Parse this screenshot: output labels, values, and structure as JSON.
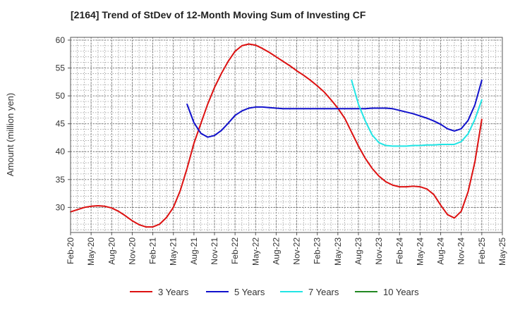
{
  "chart_data": {
    "type": "line",
    "title": "[2164]  Trend of StDev of 12-Month Moving Sum of Investing CF",
    "ylabel": "Amount (million yen)",
    "xlabel": "",
    "ylim": [
      25.5,
      60.5
    ],
    "yticks": [
      30,
      35,
      40,
      45,
      50,
      55,
      60
    ],
    "x_ticks": [
      "Feb-20",
      "May-20",
      "Aug-20",
      "Nov-20",
      "Feb-21",
      "May-21",
      "Aug-21",
      "Nov-21",
      "Feb-22",
      "May-22",
      "Aug-22",
      "Nov-22",
      "Feb-23",
      "May-23",
      "Aug-23",
      "Nov-23",
      "Feb-24",
      "May-24",
      "Aug-24",
      "Nov-24",
      "Feb-25",
      "May-25"
    ],
    "grid": true,
    "legend_position": "bottom",
    "series": [
      {
        "name": "3 Years",
        "color": "#dd1111",
        "points": [
          [
            "Feb-20",
            29.2
          ],
          [
            "Mar-20",
            29.6
          ],
          [
            "Apr-20",
            30.0
          ],
          [
            "May-20",
            30.2
          ],
          [
            "Jun-20",
            30.3
          ],
          [
            "Jul-20",
            30.2
          ],
          [
            "Aug-20",
            29.9
          ],
          [
            "Sep-20",
            29.3
          ],
          [
            "Oct-20",
            28.5
          ],
          [
            "Nov-20",
            27.6
          ],
          [
            "Dec-20",
            26.9
          ],
          [
            "Jan-21",
            26.5
          ],
          [
            "Feb-21",
            26.5
          ],
          [
            "Mar-21",
            27.0
          ],
          [
            "Apr-21",
            28.2
          ],
          [
            "May-21",
            30.0
          ],
          [
            "Jun-21",
            33.0
          ],
          [
            "Jul-21",
            37.0
          ],
          [
            "Aug-21",
            41.5
          ],
          [
            "Sep-21",
            45.0
          ],
          [
            "Oct-21",
            48.5
          ],
          [
            "Nov-21",
            51.5
          ],
          [
            "Dec-21",
            54.0
          ],
          [
            "Jan-22",
            56.2
          ],
          [
            "Feb-22",
            58.0
          ],
          [
            "Mar-22",
            59.0
          ],
          [
            "Apr-22",
            59.3
          ],
          [
            "May-22",
            59.1
          ],
          [
            "Jun-22",
            58.5
          ],
          [
            "Jul-22",
            57.8
          ],
          [
            "Aug-22",
            57.0
          ],
          [
            "Sep-22",
            56.2
          ],
          [
            "Oct-22",
            55.4
          ],
          [
            "Nov-22",
            54.5
          ],
          [
            "Dec-22",
            53.7
          ],
          [
            "Jan-23",
            52.8
          ],
          [
            "Feb-23",
            51.8
          ],
          [
            "Mar-23",
            50.7
          ],
          [
            "Apr-23",
            49.3
          ],
          [
            "May-23",
            47.8
          ],
          [
            "Jun-23",
            46.0
          ],
          [
            "Jul-23",
            43.5
          ],
          [
            "Aug-23",
            41.0
          ],
          [
            "Sep-23",
            38.8
          ],
          [
            "Oct-23",
            37.0
          ],
          [
            "Nov-23",
            35.6
          ],
          [
            "Dec-23",
            34.6
          ],
          [
            "Jan-24",
            34.0
          ],
          [
            "Feb-24",
            33.7
          ],
          [
            "Mar-24",
            33.7
          ],
          [
            "Apr-24",
            33.8
          ],
          [
            "May-24",
            33.7
          ],
          [
            "Jun-24",
            33.3
          ],
          [
            "Jul-24",
            32.3
          ],
          [
            "Aug-24",
            30.4
          ],
          [
            "Sep-24",
            28.7
          ],
          [
            "Oct-24",
            28.1
          ],
          [
            "Nov-24",
            29.3
          ],
          [
            "Dec-24",
            32.8
          ],
          [
            "Jan-25",
            38.2
          ],
          [
            "Feb-25",
            45.8
          ]
        ]
      },
      {
        "name": "5 Years",
        "color": "#1111cc",
        "points": [
          [
            "Jul-21",
            48.5
          ],
          [
            "Aug-21",
            45.2
          ],
          [
            "Sep-21",
            43.3
          ],
          [
            "Oct-21",
            42.6
          ],
          [
            "Nov-21",
            42.9
          ],
          [
            "Dec-21",
            43.8
          ],
          [
            "Jan-22",
            45.1
          ],
          [
            "Feb-22",
            46.5
          ],
          [
            "Mar-22",
            47.3
          ],
          [
            "Apr-22",
            47.8
          ],
          [
            "May-22",
            48.0
          ],
          [
            "Jun-22",
            48.0
          ],
          [
            "Jul-22",
            47.9
          ],
          [
            "Aug-22",
            47.8
          ],
          [
            "Sep-22",
            47.7
          ],
          [
            "Oct-22",
            47.7
          ],
          [
            "Nov-22",
            47.7
          ],
          [
            "Dec-22",
            47.7
          ],
          [
            "Jan-23",
            47.7
          ],
          [
            "Feb-23",
            47.7
          ],
          [
            "Mar-23",
            47.7
          ],
          [
            "Apr-23",
            47.7
          ],
          [
            "May-23",
            47.7
          ],
          [
            "Jun-23",
            47.7
          ],
          [
            "Jul-23",
            47.7
          ],
          [
            "Aug-23",
            47.7
          ],
          [
            "Sep-23",
            47.7
          ],
          [
            "Oct-23",
            47.8
          ],
          [
            "Nov-23",
            47.8
          ],
          [
            "Dec-23",
            47.8
          ],
          [
            "Jan-24",
            47.7
          ],
          [
            "Feb-24",
            47.4
          ],
          [
            "Mar-24",
            47.1
          ],
          [
            "Apr-24",
            46.8
          ],
          [
            "May-24",
            46.4
          ],
          [
            "Jun-24",
            46.0
          ],
          [
            "Jul-24",
            45.5
          ],
          [
            "Aug-24",
            44.9
          ],
          [
            "Sep-24",
            44.1
          ],
          [
            "Oct-24",
            43.7
          ],
          [
            "Nov-24",
            44.1
          ],
          [
            "Dec-24",
            45.6
          ],
          [
            "Jan-25",
            48.4
          ],
          [
            "Feb-25",
            52.8
          ]
        ]
      },
      {
        "name": "7 Years",
        "color": "#22e5e5",
        "points": [
          [
            "Jul-23",
            52.8
          ],
          [
            "Aug-23",
            48.5
          ],
          [
            "Sep-23",
            45.5
          ],
          [
            "Oct-23",
            43.0
          ],
          [
            "Nov-23",
            41.6
          ],
          [
            "Dec-23",
            41.1
          ],
          [
            "Jan-24",
            41.0
          ],
          [
            "Feb-24",
            41.0
          ],
          [
            "Mar-24",
            41.0
          ],
          [
            "Apr-24",
            41.1
          ],
          [
            "May-24",
            41.1
          ],
          [
            "Jun-24",
            41.2
          ],
          [
            "Jul-24",
            41.2
          ],
          [
            "Aug-24",
            41.3
          ],
          [
            "Sep-24",
            41.3
          ],
          [
            "Oct-24",
            41.3
          ],
          [
            "Nov-24",
            41.8
          ],
          [
            "Dec-24",
            43.2
          ],
          [
            "Jan-25",
            45.8
          ],
          [
            "Feb-25",
            49.3
          ]
        ]
      },
      {
        "name": "10 Years",
        "color": "#228822",
        "points": []
      }
    ]
  }
}
